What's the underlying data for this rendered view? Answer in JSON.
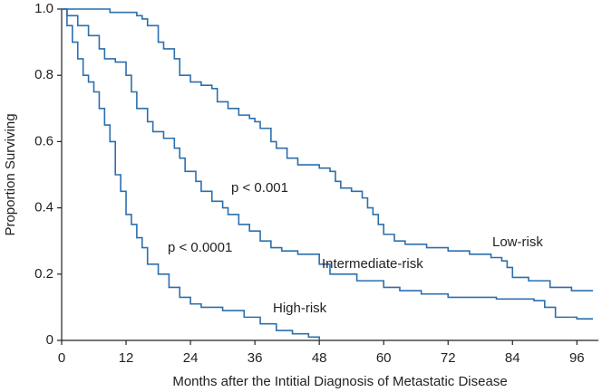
{
  "chart_data": {
    "type": "line",
    "step": true,
    "xlabel": "Months after the Intitial Diagnosis of Metastatic Disease",
    "ylabel": "Proportion Surviving",
    "xlim": [
      0,
      100
    ],
    "xticks": [
      0,
      12,
      24,
      36,
      48,
      60,
      72,
      84,
      96
    ],
    "ylim": [
      0,
      1
    ],
    "yticks": [
      0,
      0.2,
      0.4,
      0.6,
      0.8,
      {
        "value": 1,
        "label": "1.0"
      }
    ],
    "grid": false,
    "annotations": [
      "p < 0.001",
      "p < 0.0001"
    ],
    "series": [
      {
        "name": "Low-risk",
        "color": "#2c6fae",
        "x": [
          0,
          9,
          14,
          15,
          16,
          18,
          19,
          21,
          22,
          24,
          26,
          28,
          29,
          31,
          33,
          35,
          36,
          37,
          39,
          40,
          42,
          44,
          48,
          50,
          51,
          52,
          54,
          56,
          57,
          58,
          59,
          60,
          62,
          64,
          68,
          72,
          76,
          80,
          82,
          83,
          84,
          87,
          91,
          95,
          99
        ],
        "values": [
          1,
          0.99,
          0.98,
          0.97,
          0.95,
          0.9,
          0.88,
          0.85,
          0.8,
          0.78,
          0.77,
          0.76,
          0.72,
          0.7,
          0.68,
          0.67,
          0.66,
          0.64,
          0.6,
          0.58,
          0.55,
          0.53,
          0.52,
          0.51,
          0.48,
          0.46,
          0.45,
          0.43,
          0.4,
          0.38,
          0.35,
          0.32,
          0.3,
          0.29,
          0.28,
          0.27,
          0.26,
          0.25,
          0.24,
          0.22,
          0.19,
          0.18,
          0.16,
          0.15,
          0.15
        ]
      },
      {
        "name": "Intermediate-risk",
        "color": "#2c6fae",
        "x": [
          0,
          1,
          3,
          5,
          7,
          8,
          10,
          12,
          13,
          14,
          16,
          17,
          19,
          21,
          22,
          23,
          25,
          26,
          28,
          30,
          31,
          33,
          35,
          37,
          39,
          41,
          44,
          48,
          50,
          55,
          60,
          63,
          67,
          72,
          81,
          88,
          90,
          92,
          96,
          99
        ],
        "values": [
          1,
          0.98,
          0.95,
          0.92,
          0.88,
          0.85,
          0.84,
          0.8,
          0.75,
          0.7,
          0.66,
          0.63,
          0.61,
          0.58,
          0.55,
          0.51,
          0.48,
          0.45,
          0.42,
          0.4,
          0.38,
          0.35,
          0.33,
          0.3,
          0.28,
          0.27,
          0.26,
          0.23,
          0.2,
          0.18,
          0.16,
          0.15,
          0.14,
          0.13,
          0.125,
          0.12,
          0.1,
          0.07,
          0.065,
          0.065
        ]
      },
      {
        "name": "High-risk",
        "color": "#2c6fae",
        "x": [
          0,
          1,
          2,
          3,
          4,
          5,
          6,
          7,
          8,
          9,
          10,
          11,
          12,
          13,
          14,
          15,
          16,
          18,
          20,
          22,
          24,
          26,
          30,
          34,
          37,
          40,
          43,
          46,
          48
        ],
        "values": [
          1,
          0.95,
          0.9,
          0.85,
          0.8,
          0.78,
          0.75,
          0.7,
          0.65,
          0.6,
          0.5,
          0.45,
          0.38,
          0.35,
          0.31,
          0.28,
          0.23,
          0.2,
          0.16,
          0.13,
          0.11,
          0.1,
          0.09,
          0.07,
          0.05,
          0.03,
          0.02,
          0.01,
          0
        ]
      }
    ]
  }
}
